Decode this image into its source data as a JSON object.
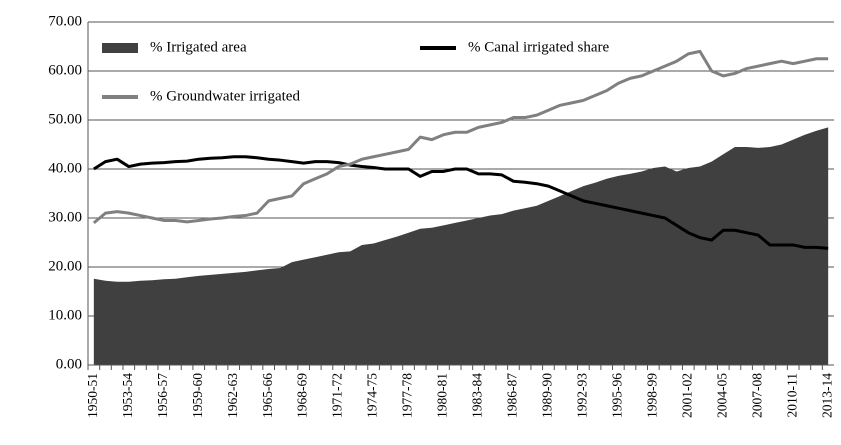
{
  "chart_data": {
    "type": "line",
    "categories": [
      "1950-51",
      null,
      null,
      "1953-54",
      null,
      null,
      "1956-57",
      null,
      null,
      "1959-60",
      null,
      null,
      "1962-63",
      null,
      null,
      "1965-66",
      null,
      null,
      "1968-69",
      null,
      null,
      "1971-72",
      null,
      null,
      "1974-75",
      null,
      null,
      "1977-78",
      null,
      null,
      "1980-81",
      null,
      null,
      "1983-84",
      null,
      null,
      "1986-87",
      null,
      null,
      "1989-90",
      null,
      null,
      "1992-93",
      null,
      null,
      "1995-96",
      null,
      null,
      "1998-99",
      null,
      null,
      "2001-02",
      null,
      null,
      "2004-05",
      null,
      null,
      "2007-08",
      null,
      null,
      "2010-11",
      null,
      null,
      "2013-14"
    ],
    "series": [
      {
        "name": "% Irrigated area",
        "type": "area",
        "color": "#404040",
        "values": [
          17.6,
          17.2,
          17.0,
          17.0,
          17.2,
          17.3,
          17.5,
          17.6,
          17.9,
          18.2,
          18.4,
          18.6,
          18.8,
          19.0,
          19.3,
          19.6,
          19.8,
          21.0,
          21.5,
          22.0,
          22.5,
          23.0,
          23.2,
          24.5,
          24.8,
          25.5,
          26.2,
          27.0,
          27.8,
          28.0,
          28.5,
          29.0,
          29.5,
          30.0,
          30.5,
          30.8,
          31.5,
          32.0,
          32.5,
          33.5,
          34.5,
          35.5,
          36.5,
          37.2,
          38.0,
          38.6,
          39.0,
          39.5,
          40.2,
          40.5,
          39.5,
          40.2,
          40.5,
          41.5,
          43.0,
          44.5,
          44.5,
          44.3,
          44.5,
          45.0,
          46.0,
          47.0,
          47.8,
          48.5
        ]
      },
      {
        "name": "% Canal irrigated share",
        "type": "line",
        "color": "#000000",
        "values": [
          40.0,
          41.5,
          42.0,
          40.5,
          41.0,
          41.2,
          41.3,
          41.5,
          41.6,
          42.0,
          42.2,
          42.3,
          42.5,
          42.5,
          42.3,
          42.0,
          41.8,
          41.5,
          41.2,
          41.5,
          41.5,
          41.3,
          40.8,
          40.5,
          40.3,
          40.0,
          40.0,
          40.0,
          38.5,
          39.5,
          39.5,
          40.0,
          40.0,
          39.0,
          39.0,
          38.8,
          37.5,
          37.3,
          37.0,
          36.5,
          35.5,
          34.5,
          33.5,
          33.0,
          32.5,
          32.0,
          31.5,
          31.0,
          30.5,
          30.0,
          28.5,
          27.0,
          26.0,
          25.5,
          27.5,
          27.5,
          27.0,
          26.5,
          24.5,
          24.5,
          24.5,
          24.0,
          24.0,
          23.8
        ]
      },
      {
        "name": "% Groundwater irrigated",
        "type": "line",
        "color": "#808080",
        "values": [
          29.0,
          31.0,
          31.3,
          31.0,
          30.5,
          30.0,
          29.5,
          29.5,
          29.2,
          29.5,
          29.8,
          30.0,
          30.3,
          30.5,
          31.0,
          33.5,
          34.0,
          34.5,
          37.0,
          38.0,
          39.0,
          40.5,
          41.0,
          42.0,
          42.5,
          43.0,
          43.5,
          44.0,
          46.5,
          46.0,
          47.0,
          47.5,
          47.5,
          48.5,
          49.0,
          49.5,
          50.5,
          50.5,
          51.0,
          52.0,
          53.0,
          53.5,
          54.0,
          55.0,
          56.0,
          57.5,
          58.5,
          59.0,
          60.0,
          61.0,
          62.0,
          63.5,
          64.0,
          60.0,
          59.0,
          59.5,
          60.5,
          61.0,
          61.5,
          62.0,
          61.5,
          62.0,
          62.5,
          62.5
        ]
      }
    ],
    "ylim": [
      0,
      70
    ],
    "yticks": [
      {
        "value": 0,
        "label": "0.00"
      },
      {
        "value": 10,
        "label": "10.00"
      },
      {
        "value": 20,
        "label": "20.00"
      },
      {
        "value": 30,
        "label": "30.00"
      },
      {
        "value": 40,
        "label": "40.00"
      },
      {
        "value": 50,
        "label": "50.00"
      },
      {
        "value": 60,
        "label": "60.00"
      },
      {
        "value": 70,
        "label": "70.00"
      }
    ],
    "grid": true,
    "legend": "top-left"
  }
}
